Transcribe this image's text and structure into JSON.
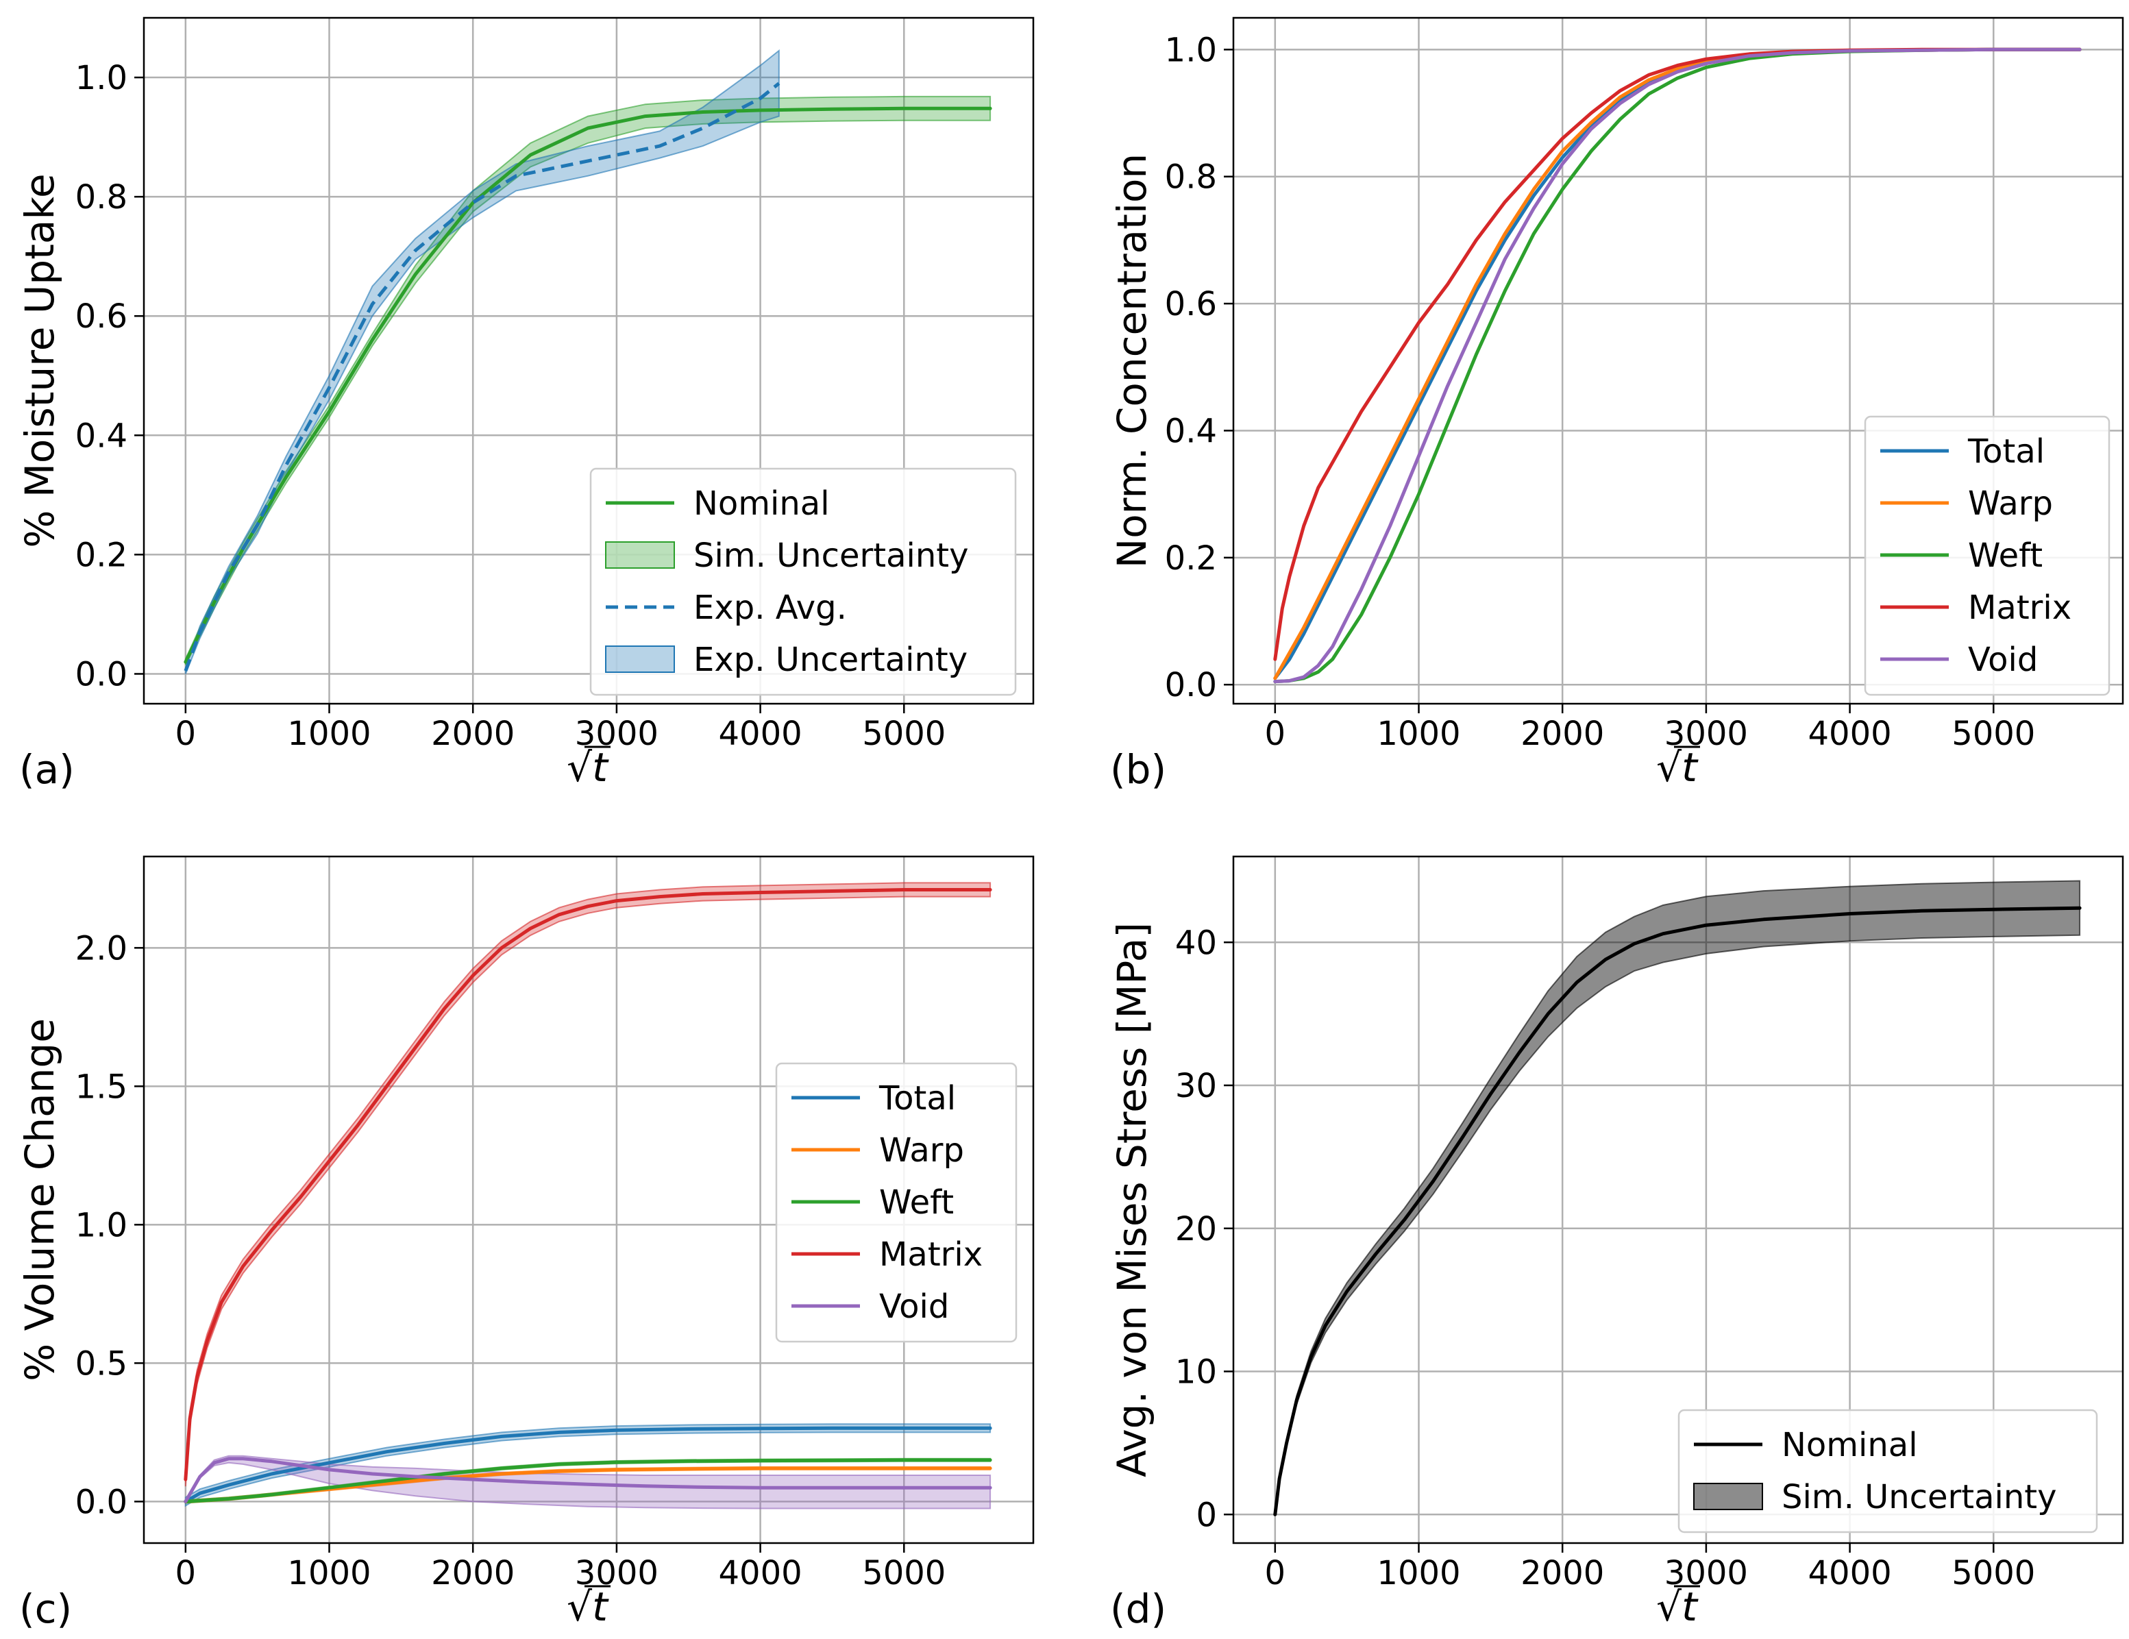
{
  "figure": {
    "xlabel": "√t",
    "colors": {
      "blue": "#1f77b4",
      "orange": "#ff7f0e",
      "green": "#2ca02c",
      "red": "#d62728",
      "purple": "#9467bd",
      "black": "#000000",
      "grid": "#b0b0b0"
    }
  },
  "chart_data": [
    {
      "panel": "(a)",
      "type": "line",
      "xlabel": "√t",
      "ylabel": "% Moisture Uptake",
      "xlim": [
        -290,
        5900
      ],
      "ylim": [
        -0.05,
        1.1
      ],
      "xticks": [
        0,
        1000,
        2000,
        3000,
        4000,
        5000
      ],
      "yticks": [
        0.0,
        0.2,
        0.4,
        0.6,
        0.8,
        1.0
      ],
      "ytick_labels": [
        "0.0",
        "0.2",
        "0.4",
        "0.6",
        "0.8",
        "1.0"
      ],
      "legend": {
        "loc": "lower right",
        "entries": [
          "Nominal",
          "Sim. Uncertainty",
          "Exp. Avg.",
          "Exp. Uncertainty"
        ]
      },
      "series": [
        {
          "name": "Nominal",
          "color": "green",
          "style": "solid",
          "x": [
            0,
            200,
            400,
            700,
            1000,
            1300,
            1600,
            2000,
            2400,
            2800,
            3200,
            3600,
            4000,
            4500,
            5000,
            5600
          ],
          "y": [
            0.02,
            0.12,
            0.21,
            0.33,
            0.44,
            0.56,
            0.67,
            0.79,
            0.87,
            0.915,
            0.935,
            0.942,
            0.945,
            0.947,
            0.948,
            0.948
          ],
          "band_low": [
            0.015,
            0.11,
            0.2,
            0.32,
            0.43,
            0.55,
            0.655,
            0.775,
            0.85,
            0.89,
            0.915,
            0.922,
            0.925,
            0.927,
            0.928,
            0.928
          ],
          "band_high": [
            0.025,
            0.13,
            0.22,
            0.34,
            0.45,
            0.57,
            0.685,
            0.81,
            0.89,
            0.935,
            0.955,
            0.962,
            0.965,
            0.967,
            0.968,
            0.968
          ],
          "band_name": "Sim. Uncertainty"
        },
        {
          "name": "Exp. Avg.",
          "color": "blue",
          "style": "dashed",
          "x": [
            0,
            100,
            300,
            500,
            700,
            1000,
            1300,
            1600,
            2000,
            2300,
            2800,
            3300,
            3600,
            4000,
            4130
          ],
          "y": [
            0.005,
            0.07,
            0.17,
            0.25,
            0.35,
            0.48,
            0.62,
            0.71,
            0.79,
            0.835,
            0.86,
            0.885,
            0.915,
            0.965,
            0.99
          ],
          "band_low": [
            0.0,
            0.06,
            0.16,
            0.235,
            0.335,
            0.46,
            0.6,
            0.695,
            0.765,
            0.81,
            0.835,
            0.865,
            0.885,
            0.925,
            0.935
          ],
          "band_high": [
            0.01,
            0.08,
            0.18,
            0.265,
            0.365,
            0.5,
            0.65,
            0.73,
            0.81,
            0.855,
            0.885,
            0.91,
            0.95,
            1.02,
            1.045
          ],
          "band_name": "Exp. Uncertainty"
        }
      ]
    },
    {
      "panel": "(b)",
      "type": "line",
      "xlabel": "√t",
      "ylabel": "Norm. Concentration",
      "xlim": [
        -290,
        5900
      ],
      "ylim": [
        -0.03,
        1.05
      ],
      "xticks": [
        0,
        1000,
        2000,
        3000,
        4000,
        5000
      ],
      "yticks": [
        0.0,
        0.2,
        0.4,
        0.6,
        0.8,
        1.0
      ],
      "ytick_labels": [
        "0.0",
        "0.2",
        "0.4",
        "0.6",
        "0.8",
        "1.0"
      ],
      "legend": {
        "loc": "lower right",
        "entries": [
          "Total",
          "Warp",
          "Weft",
          "Matrix",
          "Void"
        ]
      },
      "series": [
        {
          "name": "Total",
          "color": "blue",
          "x": [
            0,
            100,
            200,
            400,
            600,
            800,
            1000,
            1200,
            1400,
            1600,
            1800,
            2000,
            2200,
            2400,
            2600,
            2800,
            3000,
            3300,
            3600,
            4000,
            4500,
            5000,
            5600
          ],
          "y": [
            0.01,
            0.04,
            0.08,
            0.17,
            0.26,
            0.35,
            0.44,
            0.53,
            0.62,
            0.7,
            0.77,
            0.83,
            0.88,
            0.92,
            0.95,
            0.97,
            0.982,
            0.99,
            0.995,
            0.998,
            0.999,
            1.0,
            1.0
          ]
        },
        {
          "name": "Warp",
          "color": "orange",
          "x": [
            0,
            100,
            200,
            400,
            600,
            800,
            1000,
            1200,
            1400,
            1600,
            1800,
            2000,
            2200,
            2400,
            2600,
            2800,
            3000,
            3300,
            3600,
            4000,
            4500,
            5000,
            5600
          ],
          "y": [
            0.01,
            0.05,
            0.09,
            0.18,
            0.27,
            0.36,
            0.45,
            0.54,
            0.63,
            0.71,
            0.78,
            0.84,
            0.885,
            0.925,
            0.952,
            0.97,
            0.982,
            0.99,
            0.995,
            0.998,
            0.999,
            1.0,
            1.0
          ]
        },
        {
          "name": "Weft",
          "color": "green",
          "x": [
            0,
            100,
            200,
            300,
            400,
            600,
            800,
            1000,
            1200,
            1400,
            1600,
            1800,
            2000,
            2200,
            2400,
            2600,
            2800,
            3000,
            3300,
            3600,
            4000,
            4500,
            5000,
            5600
          ],
          "y": [
            0.005,
            0.006,
            0.01,
            0.02,
            0.04,
            0.11,
            0.2,
            0.3,
            0.41,
            0.52,
            0.62,
            0.71,
            0.78,
            0.84,
            0.89,
            0.93,
            0.955,
            0.972,
            0.986,
            0.993,
            0.997,
            0.999,
            1.0,
            1.0
          ]
        },
        {
          "name": "Matrix",
          "color": "red",
          "x": [
            0,
            50,
            100,
            200,
            300,
            400,
            600,
            800,
            1000,
            1200,
            1400,
            1600,
            1800,
            2000,
            2200,
            2400,
            2600,
            2800,
            3000,
            3300,
            3600,
            4000,
            4500,
            5000,
            5600
          ],
          "y": [
            0.04,
            0.12,
            0.17,
            0.25,
            0.31,
            0.35,
            0.43,
            0.5,
            0.57,
            0.63,
            0.7,
            0.76,
            0.81,
            0.86,
            0.9,
            0.935,
            0.96,
            0.975,
            0.985,
            0.993,
            0.997,
            0.999,
            1.0,
            1.0,
            1.0
          ]
        },
        {
          "name": "Void",
          "color": "purple",
          "x": [
            0,
            100,
            200,
            300,
            400,
            600,
            800,
            1000,
            1200,
            1400,
            1600,
            1800,
            2000,
            2200,
            2400,
            2600,
            2800,
            3000,
            3300,
            3600,
            4000,
            4500,
            5000,
            5600
          ],
          "y": [
            0.005,
            0.006,
            0.012,
            0.03,
            0.06,
            0.15,
            0.25,
            0.36,
            0.47,
            0.57,
            0.67,
            0.75,
            0.82,
            0.875,
            0.915,
            0.945,
            0.965,
            0.978,
            0.99,
            0.995,
            0.998,
            0.999,
            1.0,
            1.0
          ]
        }
      ]
    },
    {
      "panel": "(c)",
      "type": "line",
      "xlabel": "√t",
      "ylabel": "% Volume Change",
      "xlim": [
        -290,
        5900
      ],
      "ylim": [
        -0.15,
        2.33
      ],
      "xticks": [
        0,
        1000,
        2000,
        3000,
        4000,
        5000
      ],
      "yticks": [
        0.0,
        0.5,
        1.0,
        1.5,
        2.0
      ],
      "ytick_labels": [
        "0.0",
        "0.5",
        "1.0",
        "1.5",
        "2.0"
      ],
      "legend": {
        "loc": "center right",
        "entries": [
          "Total",
          "Warp",
          "Weft",
          "Matrix",
          "Void"
        ]
      },
      "series": [
        {
          "name": "Total",
          "color": "blue",
          "x": [
            0,
            100,
            300,
            600,
            1000,
            1400,
            1800,
            2200,
            2600,
            3000,
            3500,
            4000,
            4500,
            5000,
            5600
          ],
          "y": [
            0.0,
            0.03,
            0.06,
            0.1,
            0.14,
            0.18,
            0.21,
            0.235,
            0.25,
            0.258,
            0.262,
            0.264,
            0.265,
            0.265,
            0.265
          ],
          "band": 0.015
        },
        {
          "name": "Warp",
          "color": "orange",
          "x": [
            0,
            300,
            600,
            1000,
            1400,
            1800,
            2200,
            2600,
            3000,
            3500,
            4000,
            4500,
            5000,
            5600
          ],
          "y": [
            0.0,
            0.01,
            0.025,
            0.045,
            0.065,
            0.085,
            0.1,
            0.11,
            0.115,
            0.118,
            0.12,
            0.12,
            0.12,
            0.12
          ],
          "band": 0.005
        },
        {
          "name": "Weft",
          "color": "green",
          "x": [
            0,
            300,
            600,
            1000,
            1400,
            1800,
            2200,
            2600,
            3000,
            3500,
            4000,
            4500,
            5000,
            5600
          ],
          "y": [
            0.0,
            0.01,
            0.025,
            0.05,
            0.075,
            0.1,
            0.12,
            0.135,
            0.142,
            0.146,
            0.148,
            0.149,
            0.15,
            0.15
          ],
          "band": 0.005
        },
        {
          "name": "Matrix",
          "color": "red",
          "x": [
            0,
            30,
            80,
            150,
            250,
            400,
            600,
            800,
            1000,
            1200,
            1400,
            1600,
            1800,
            2000,
            2200,
            2400,
            2600,
            2800,
            3000,
            3300,
            3600,
            4000,
            4500,
            5000,
            5600
          ],
          "y": [
            0.08,
            0.3,
            0.45,
            0.58,
            0.72,
            0.85,
            0.98,
            1.1,
            1.23,
            1.36,
            1.5,
            1.64,
            1.78,
            1.9,
            2.0,
            2.07,
            2.12,
            2.15,
            2.17,
            2.185,
            2.195,
            2.2,
            2.205,
            2.21,
            2.21
          ],
          "band": 0.025
        },
        {
          "name": "Void",
          "color": "purple",
          "x": [
            0,
            100,
            200,
            300,
            400,
            600,
            800,
            1000,
            1300,
            1600,
            2000,
            2400,
            2800,
            3200,
            3600,
            4000,
            4500,
            5000,
            5600
          ],
          "y": [
            0.0,
            0.09,
            0.14,
            0.155,
            0.155,
            0.145,
            0.13,
            0.115,
            0.1,
            0.09,
            0.08,
            0.07,
            0.062,
            0.056,
            0.052,
            0.05,
            0.05,
            0.05,
            0.05
          ],
          "band_low": [
            0.0,
            0.085,
            0.13,
            0.14,
            0.135,
            0.115,
            0.09,
            0.065,
            0.04,
            0.02,
            0.0,
            -0.01,
            -0.018,
            -0.022,
            -0.024,
            -0.025,
            -0.025,
            -0.025,
            -0.025
          ],
          "band_high": [
            0.0,
            0.095,
            0.15,
            0.165,
            0.165,
            0.155,
            0.145,
            0.135,
            0.125,
            0.12,
            0.11,
            0.102,
            0.098,
            0.095,
            0.095,
            0.095,
            0.095,
            0.095,
            0.095
          ]
        }
      ]
    },
    {
      "panel": "(d)",
      "type": "line",
      "xlabel": "√t",
      "ylabel": "Avg. von Mises Stress [MPa]",
      "xlim": [
        -290,
        5900
      ],
      "ylim": [
        -2,
        46
      ],
      "xticks": [
        0,
        1000,
        2000,
        3000,
        4000,
        5000
      ],
      "yticks": [
        0,
        10,
        20,
        30,
        40
      ],
      "ytick_labels": [
        "0",
        "10",
        "20",
        "30",
        "40"
      ],
      "legend": {
        "loc": "lower right",
        "entries": [
          "Nominal",
          "Sim. Uncertainty"
        ]
      },
      "series": [
        {
          "name": "Nominal",
          "color": "black",
          "x": [
            0,
            30,
            80,
            150,
            250,
            350,
            500,
            700,
            900,
            1100,
            1300,
            1500,
            1700,
            1900,
            2100,
            2300,
            2500,
            2700,
            3000,
            3400,
            4000,
            4500,
            5000,
            5600
          ],
          "y": [
            0.0,
            2.5,
            5.0,
            8.0,
            11.0,
            13.2,
            15.6,
            18.2,
            20.6,
            23.3,
            26.3,
            29.4,
            32.3,
            35.0,
            37.2,
            38.8,
            39.9,
            40.6,
            41.2,
            41.6,
            42.0,
            42.2,
            42.3,
            42.4
          ],
          "band_low": [
            0.0,
            2.4,
            4.8,
            7.7,
            10.6,
            12.7,
            15.0,
            17.5,
            19.8,
            22.4,
            25.3,
            28.3,
            31.0,
            33.4,
            35.4,
            36.9,
            38.0,
            38.6,
            39.2,
            39.7,
            40.1,
            40.3,
            40.4,
            40.5
          ],
          "band_high": [
            0.0,
            2.6,
            5.2,
            8.3,
            11.4,
            13.7,
            16.2,
            18.9,
            21.4,
            24.2,
            27.3,
            30.5,
            33.6,
            36.6,
            39.0,
            40.7,
            41.8,
            42.6,
            43.2,
            43.6,
            43.9,
            44.1,
            44.2,
            44.3
          ],
          "band_name": "Sim. Uncertainty"
        }
      ]
    }
  ]
}
